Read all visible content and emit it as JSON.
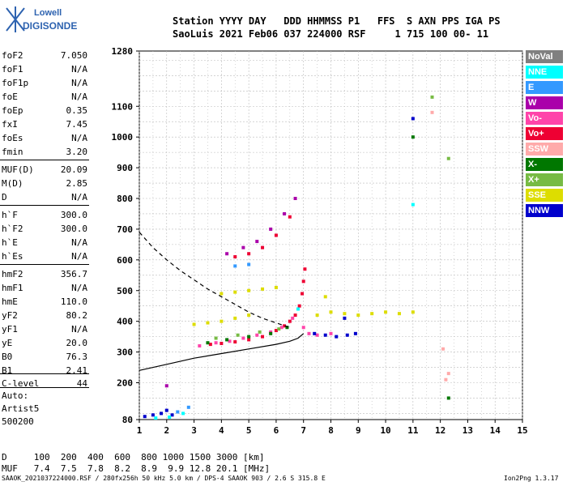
{
  "logo": {
    "top": "Lowell",
    "bottom": "DIGISONDE"
  },
  "header": {
    "line1": "Station YYYY DAY   DDD HHMMSS P1   FFS  S AXN PPS IGA PS",
    "line2": "SaoLuis 2021 Feb06 037 224000 RSF     1 715 100 00- 11"
  },
  "params": [
    {
      "name": "foF2",
      "value": "7.050"
    },
    {
      "name": "foF1",
      "value": "N/A"
    },
    {
      "name": "foF1p",
      "value": "N/A"
    },
    {
      "name": "foE",
      "value": "N/A"
    },
    {
      "name": "foEp",
      "value": "0.35"
    },
    {
      "name": "fxI",
      "value": "7.45"
    },
    {
      "name": "foEs",
      "value": "N/A"
    },
    {
      "name": "fmin",
      "value": "3.20"
    },
    {
      "name": "MUF(D)",
      "value": "20.09"
    },
    {
      "name": "M(D)",
      "value": "2.85"
    },
    {
      "name": "D",
      "value": "N/A"
    },
    {
      "name": "h`F",
      "value": "300.0"
    },
    {
      "name": "h`F2",
      "value": "300.0"
    },
    {
      "name": "h`E",
      "value": "N/A"
    },
    {
      "name": "h`Es",
      "value": "N/A"
    },
    {
      "name": "hmF2",
      "value": "356.7"
    },
    {
      "name": "hmF1",
      "value": "N/A"
    },
    {
      "name": "hmE",
      "value": "110.0"
    },
    {
      "name": "yF2",
      "value": "80.2"
    },
    {
      "name": "yF1",
      "value": "N/A"
    },
    {
      "name": "yE",
      "value": "20.0"
    },
    {
      "name": "B0",
      "value": "76.3"
    },
    {
      "name": "B1",
      "value": "2.41"
    },
    {
      "name": "C-level",
      "value": "44"
    }
  ],
  "autoscaling": {
    "line1": "Auto:",
    "line2": "Artist5",
    "line3": "500200"
  },
  "legend": [
    {
      "label": "NoVal",
      "color": "#808080"
    },
    {
      "label": "NNE",
      "color": "#00ffff"
    },
    {
      "label": "E",
      "color": "#3399ff"
    },
    {
      "label": "W",
      "color": "#aa00aa"
    },
    {
      "label": "Vo-",
      "color": "#ff44aa"
    },
    {
      "label": "Vo+",
      "color": "#ee0033"
    },
    {
      "label": "SSW",
      "color": "#ffaaaa"
    },
    {
      "label": "X-",
      "color": "#007700"
    },
    {
      "label": "X+",
      "color": "#77bb44"
    },
    {
      "label": "SSE",
      "color": "#dddd00"
    },
    {
      "label": "NNW",
      "color": "#0000cc"
    }
  ],
  "muf_table": {
    "d_row": "D     100  200  400  600  800 1000 1500 3000 [km]",
    "muf_row": "MUF   7.4  7.5  7.8  8.2  8.9  9.9 12.8 20.1 [MHz]"
  },
  "footer": {
    "left": "SAAOK_2021037224000.RSF / 280fx256h 50 kHz 5.0 km / DPS-4 SAAOK 903 / 2.6 S 315.8 E",
    "right": "Ion2Png 1.3.17"
  },
  "chart_data": {
    "type": "scatter",
    "title": "",
    "xlabel": "",
    "ylabel": "",
    "xlim": [
      1,
      15
    ],
    "ylim": [
      80,
      1280
    ],
    "x_ticks": [
      1,
      2,
      3,
      4,
      5,
      6,
      7,
      8,
      9,
      10,
      11,
      12,
      13,
      14,
      15
    ],
    "y_ticks": [
      80,
      200,
      300,
      400,
      500,
      600,
      700,
      800,
      900,
      1000,
      1100,
      1280
    ],
    "grid": true,
    "series": [
      {
        "name": "Vo+",
        "color": "#ee0033",
        "points": [
          [
            3.6,
            325
          ],
          [
            4.0,
            328
          ],
          [
            4.5,
            333
          ],
          [
            5.0,
            340
          ],
          [
            5.5,
            350
          ],
          [
            6.0,
            370
          ],
          [
            6.3,
            385
          ],
          [
            6.5,
            400
          ],
          [
            6.7,
            420
          ],
          [
            6.85,
            450
          ],
          [
            6.95,
            490
          ],
          [
            7.0,
            530
          ],
          [
            7.05,
            570
          ],
          [
            5.5,
            640
          ],
          [
            6.0,
            680
          ],
          [
            6.5,
            740
          ],
          [
            5.0,
            620
          ],
          [
            4.5,
            610
          ]
        ]
      },
      {
        "name": "Vo-",
        "color": "#ff44aa",
        "points": [
          [
            3.2,
            320
          ],
          [
            3.8,
            330
          ],
          [
            4.3,
            335
          ],
          [
            4.8,
            345
          ],
          [
            5.3,
            355
          ],
          [
            5.8,
            365
          ],
          [
            6.2,
            380
          ],
          [
            6.6,
            410
          ],
          [
            7.0,
            380
          ],
          [
            7.2,
            360
          ],
          [
            7.5,
            355
          ],
          [
            8.0,
            360
          ]
        ]
      },
      {
        "name": "SSE",
        "color": "#dddd00",
        "points": [
          [
            3.0,
            390
          ],
          [
            3.5,
            395
          ],
          [
            4.0,
            400
          ],
          [
            4.5,
            410
          ],
          [
            5.0,
            420
          ],
          [
            4.0,
            490
          ],
          [
            4.5,
            495
          ],
          [
            5.0,
            500
          ],
          [
            5.5,
            505
          ],
          [
            6.0,
            510
          ],
          [
            7.5,
            420
          ],
          [
            8.0,
            430
          ],
          [
            8.5,
            425
          ],
          [
            9.0,
            420
          ],
          [
            9.5,
            425
          ],
          [
            10.0,
            430
          ],
          [
            10.5,
            425
          ],
          [
            11.0,
            430
          ],
          [
            7.8,
            480
          ]
        ]
      },
      {
        "name": "W",
        "color": "#aa00aa",
        "points": [
          [
            4.2,
            620
          ],
          [
            4.8,
            640
          ],
          [
            5.3,
            660
          ],
          [
            5.8,
            700
          ],
          [
            6.3,
            750
          ],
          [
            6.7,
            800
          ],
          [
            2.0,
            190
          ]
        ]
      },
      {
        "name": "NNW",
        "color": "#0000cc",
        "points": [
          [
            1.2,
            90
          ],
          [
            1.5,
            95
          ],
          [
            1.8,
            100
          ],
          [
            2.0,
            110
          ],
          [
            2.2,
            95
          ],
          [
            7.4,
            360
          ],
          [
            7.8,
            355
          ],
          [
            8.2,
            350
          ],
          [
            8.6,
            355
          ],
          [
            8.9,
            360
          ],
          [
            8.5,
            410
          ],
          [
            11.0,
            1060
          ]
        ]
      },
      {
        "name": "X-",
        "color": "#007700",
        "points": [
          [
            3.5,
            330
          ],
          [
            4.2,
            340
          ],
          [
            5.0,
            350
          ],
          [
            5.8,
            360
          ],
          [
            6.4,
            380
          ],
          [
            11.0,
            1000
          ],
          [
            12.3,
            150
          ]
        ]
      },
      {
        "name": "X+",
        "color": "#77bb44",
        "points": [
          [
            3.8,
            345
          ],
          [
            4.6,
            355
          ],
          [
            5.4,
            365
          ],
          [
            6.1,
            375
          ],
          [
            11.7,
            1130
          ],
          [
            12.3,
            930
          ]
        ]
      },
      {
        "name": "NNE",
        "color": "#00ffff",
        "points": [
          [
            1.6,
            85
          ],
          [
            2.1,
            88
          ],
          [
            2.6,
            100
          ],
          [
            6.8,
            440
          ],
          [
            11.0,
            780
          ]
        ]
      },
      {
        "name": "E",
        "color": "#3399ff",
        "points": [
          [
            2.4,
            105
          ],
          [
            2.8,
            120
          ],
          [
            4.5,
            580
          ],
          [
            5.0,
            585
          ]
        ]
      },
      {
        "name": "SSW",
        "color": "#ffaaaa",
        "points": [
          [
            12.1,
            310
          ],
          [
            12.3,
            230
          ],
          [
            11.7,
            1080
          ],
          [
            12.2,
            210
          ]
        ]
      }
    ],
    "lines": [
      {
        "style": "solid",
        "color": "#000000",
        "points": [
          [
            1.0,
            240
          ],
          [
            2.0,
            260
          ],
          [
            3.0,
            280
          ],
          [
            4.0,
            295
          ],
          [
            5.0,
            310
          ],
          [
            6.0,
            325
          ],
          [
            6.5,
            335
          ],
          [
            6.8,
            345
          ],
          [
            7.0,
            360
          ]
        ]
      },
      {
        "style": "dashed",
        "color": "#000000",
        "points": [
          [
            1.0,
            690
          ],
          [
            1.5,
            640
          ],
          [
            2.0,
            600
          ],
          [
            2.5,
            565
          ],
          [
            3.0,
            535
          ],
          [
            3.5,
            505
          ],
          [
            4.0,
            480
          ],
          [
            4.5,
            455
          ],
          [
            5.0,
            430
          ],
          [
            5.5,
            410
          ],
          [
            6.0,
            395
          ],
          [
            6.5,
            380
          ]
        ]
      }
    ]
  }
}
